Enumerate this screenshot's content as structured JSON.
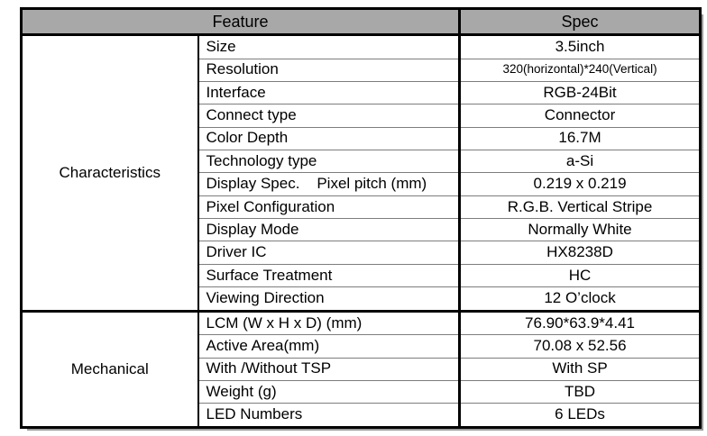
{
  "header": {
    "feature": "Feature",
    "spec": "Spec"
  },
  "sections": [
    {
      "name": "Characteristics",
      "rows": [
        {
          "feature": "Size",
          "spec": "3.5inch"
        },
        {
          "feature": "Resolution",
          "spec": "320(horizontal)*240(Vertical)",
          "small": true
        },
        {
          "feature": "Interface",
          "spec": "RGB-24Bit"
        },
        {
          "feature": "Connect type",
          "spec": "Connector"
        },
        {
          "feature": "Color Depth",
          "spec": "16.7M"
        },
        {
          "feature": "Technology type",
          "spec": "a-Si"
        },
        {
          "feature": "Display Spec.    Pixel pitch (mm)",
          "spec": "0.219 x 0.219"
        },
        {
          "feature": "Pixel Configuration",
          "spec": "R.G.B. Vertical Stripe"
        },
        {
          "feature": "Display Mode",
          "spec": "Normally White"
        },
        {
          "feature": "Driver IC",
          "spec": "HX8238D"
        },
        {
          "feature": "Surface Treatment",
          "spec": "HC"
        },
        {
          "feature": "Viewing Direction",
          "spec": "12 O’clock"
        }
      ]
    },
    {
      "name": "Mechanical",
      "rows": [
        {
          "feature": "LCM (W x H x D) (mm)",
          "spec": "76.90*63.9*4.41"
        },
        {
          "feature": "Active Area(mm)",
          "spec": "70.08 x 52.56"
        },
        {
          "feature": "With /Without TSP",
          "spec": "With SP"
        },
        {
          "feature": "Weight (g)",
          "spec": "TBD"
        },
        {
          "feature": "LED Numbers",
          "spec": "6 LEDs"
        }
      ]
    }
  ],
  "colors": {
    "header_bg": "#a8a8a8",
    "border": "#000000",
    "row_divider": "#7d7d7d",
    "shadow": "#9b9b9b"
  }
}
